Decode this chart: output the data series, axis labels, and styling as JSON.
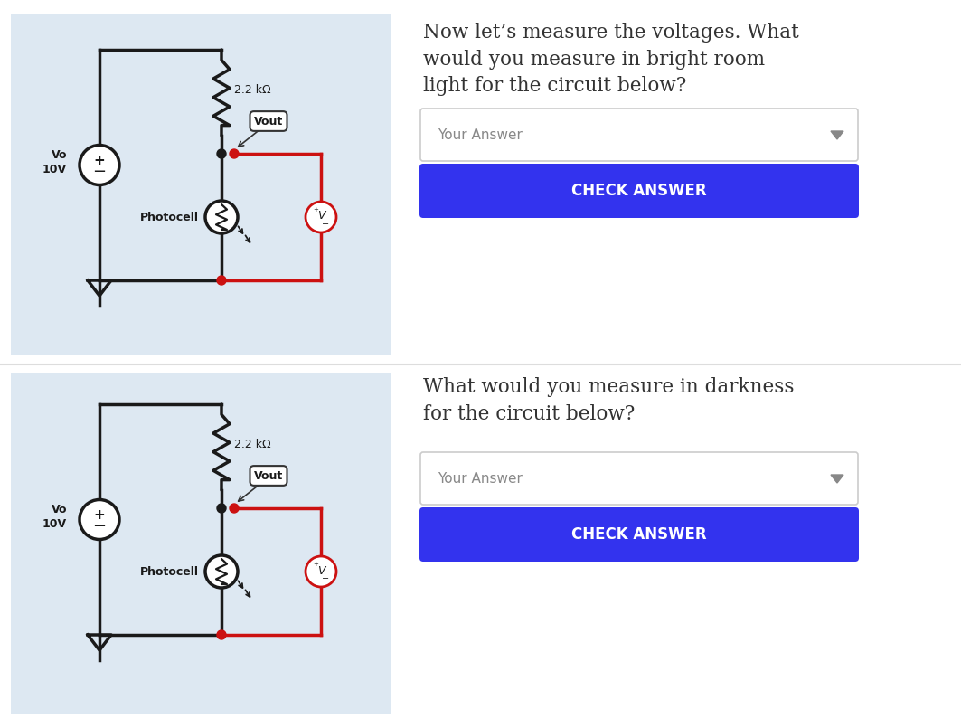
{
  "bg_color": "#f0f4f8",
  "grid_color": "#c8d8e8",
  "black": "#1a1a1a",
  "red": "#cc1111",
  "dark_gray": "#333333",
  "medium_gray": "#888888",
  "light_gray": "#cccccc",
  "blue_btn": "#3333ee",
  "white": "#ffffff",
  "divider_color": "#dddddd",
  "circuit_bg": "#dde8f2",
  "question1": "Now let’s measure the voltages. What\nwould you measure in bright room\nlight for the circuit below?",
  "question2": "What would you measure in darkness\nfor the circuit below?",
  "your_answer": "Your Answer",
  "check_answer": "CHECK ANSWER",
  "resistor_label": "2.2 kΩ",
  "vout_label": "Vout",
  "photocell_label": "Photocell",
  "vo_label": "Vo\n10V"
}
